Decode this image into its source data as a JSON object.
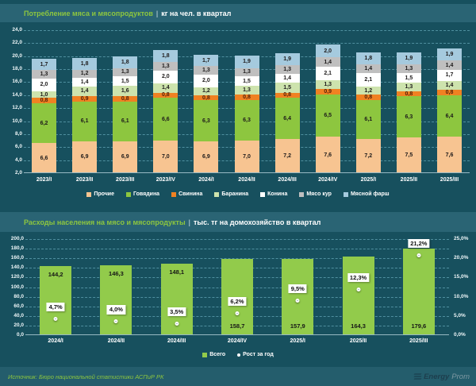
{
  "page": {
    "bg": "#17505e",
    "strip_bg": "#2a6474",
    "accent_green": "#8dc63f",
    "title_separator": "|"
  },
  "chart1": {
    "title": "Потребление мяса и мясопродуктов",
    "subtitle": "кг на чел. в квартал"
  },
  "chart2": {
    "title": "Расходы населения на мясо и мясопродукты",
    "subtitle": "тыс. тг на домохозяйство в квартал"
  },
  "chart_data": [
    {
      "type": "bar",
      "stacked": true,
      "title": "Потребление мяса и мясопродуктов, кг на чел. в квартал",
      "categories": [
        "2023/I",
        "2023/II",
        "2023/III",
        "2023/IV",
        "2024/I",
        "2024/II",
        "2024/III",
        "2024/IV",
        "2025/I",
        "2025/II",
        "2025/III"
      ],
      "series": [
        {
          "name": "Прочие",
          "color": "#f7c491",
          "values": [
            6.6,
            6.9,
            6.9,
            7.0,
            6.9,
            7.0,
            7.2,
            7.6,
            7.2,
            7.5,
            7.6
          ]
        },
        {
          "name": "Говядина",
          "color": "#8dc63f",
          "values": [
            6.2,
            6.1,
            6.1,
            6.6,
            6.3,
            6.3,
            6.4,
            6.5,
            6.1,
            6.3,
            6.4
          ]
        },
        {
          "name": "Свинина",
          "color": "#f08122",
          "label_color": "#53200a",
          "values": [
            0.8,
            0.9,
            0.8,
            0.8,
            0.8,
            0.8,
            0.8,
            0.9,
            0.8,
            0.8,
            0.8
          ]
        },
        {
          "name": "Баранина",
          "color": "#cde3ad",
          "values": [
            1.0,
            1.4,
            1.6,
            1.4,
            1.2,
            1.3,
            1.5,
            1.3,
            1.2,
            1.3,
            1.4
          ]
        },
        {
          "name": "Конина",
          "color": "#ffffff",
          "values": [
            2.0,
            1.4,
            1.5,
            2.0,
            2.0,
            1.5,
            1.4,
            2.1,
            2.1,
            1.5,
            1.7
          ]
        },
        {
          "name": "Мясо кур",
          "color": "#bfbfbf",
          "values": [
            1.3,
            1.2,
            1.3,
            1.3,
            1.3,
            1.3,
            1.3,
            1.4,
            1.4,
            1.3,
            1.4
          ]
        },
        {
          "name": "Мясной фарш",
          "color": "#a5cade",
          "values": [
            1.7,
            1.8,
            1.8,
            1.8,
            1.7,
            1.9,
            1.9,
            2.0,
            1.8,
            1.9,
            1.9
          ]
        }
      ],
      "ylim": [
        2,
        24
      ],
      "yticks": [
        24,
        22,
        20,
        18,
        16,
        14,
        12,
        10,
        8,
        6,
        4,
        2
      ],
      "grid": true,
      "legend_position": "bottom"
    },
    {
      "type": "bar+scatter",
      "title": "Расходы населения на мясо и мясопродукты, тыс. тг на домохозяйство в квартал",
      "categories": [
        "2024/I",
        "2024/II",
        "2024/III",
        "2024/IV",
        "2025/I",
        "2025/II",
        "2025/III"
      ],
      "bar_series": {
        "name": "Всего",
        "color": "#92cb4b",
        "values": [
          144.2,
          146.3,
          148.1,
          158.7,
          157.9,
          164.3,
          179.6
        ]
      },
      "line_series": {
        "name": "Рост за год",
        "values_pct": [
          4.7,
          4.0,
          3.5,
          6.2,
          9.5,
          12.3,
          21.2
        ]
      },
      "value_label_positions": [
        "top",
        "top",
        "top",
        "bottom",
        "bottom",
        "bottom",
        "bottom"
      ],
      "ylim_left": [
        0,
        200
      ],
      "ylim_right_pct": [
        0,
        25
      ],
      "yticks_left": [
        200,
        180,
        160,
        140,
        120,
        100,
        80,
        60,
        40,
        20,
        0
      ],
      "yticks_right_pct": [
        25,
        20,
        15,
        10,
        5,
        0
      ],
      "grid": true,
      "legend_position": "bottom"
    }
  ],
  "footer": {
    "source": "Источник: Бюро национальной статистики АСПиР РК",
    "logo_bold": "Energy",
    "logo_light": "Prom"
  }
}
